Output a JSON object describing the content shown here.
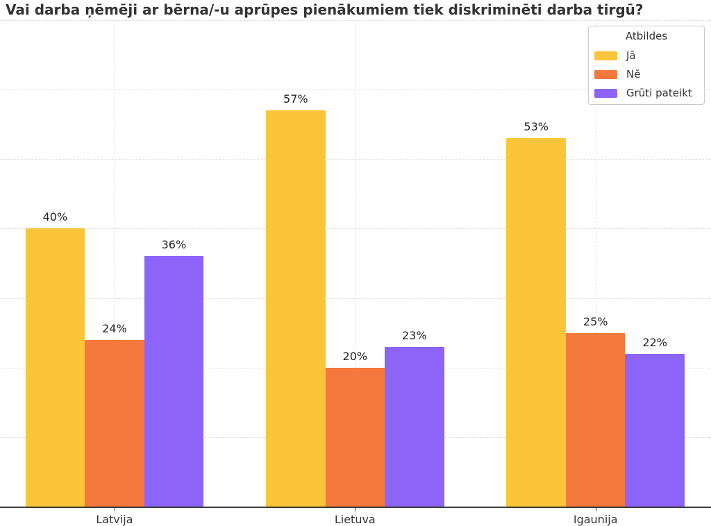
{
  "title": "Vai darba ņēmēji ar bērna/-u aprūpes pienākumiem tiek diskriminēti darba tirgū?",
  "chart_data": {
    "type": "bar",
    "title": "Vai darba ņēmēji ar bērna/-u aprūpes pienākumiem tiek diskriminēti darba tirgū?",
    "categories": [
      "Latvija",
      "Lietuva",
      "Igaunija"
    ],
    "series": [
      {
        "name": "Jā",
        "color": "#FBC53B",
        "values": [
          40,
          57,
          53
        ]
      },
      {
        "name": "Nē",
        "color": "#F5783C",
        "values": [
          24,
          20,
          25
        ]
      },
      {
        "name": "Grūti pateikt",
        "color": "#8C64F8",
        "values": [
          36,
          23,
          22
        ]
      }
    ],
    "value_label_suffix": "%",
    "legend_title": "Atbildes",
    "legend_position": "top-right",
    "xlabel": "",
    "ylabel": "",
    "ylim": [
      0,
      70
    ],
    "grid": true,
    "gridline_step": 10,
    "y_axis_labels_visible": false,
    "colors": {
      "gridline": "#dcdcdc",
      "axis_line": "#3b3b3b",
      "title_text": "#333333",
      "label_text": "#222222",
      "tick_text": "#333333"
    }
  }
}
